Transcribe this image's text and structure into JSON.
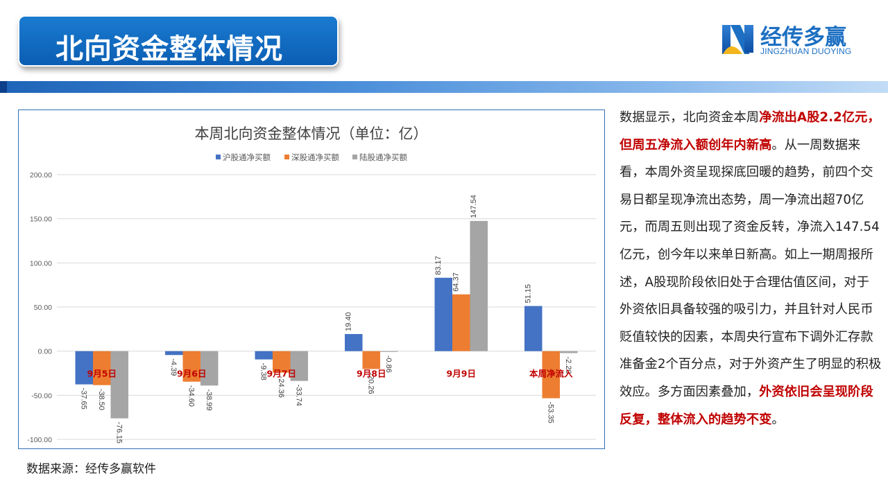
{
  "header": {
    "title": "北向资金整体情况",
    "logo_cn": "经传多赢",
    "logo_en": "JINGZHUAN DUOYING"
  },
  "colors": {
    "brand_blue": "#1c6fc2",
    "series_sh": "#4472c4",
    "series_sz": "#ed7d31",
    "series_total": "#a5a5a5",
    "category_label": "#c00000",
    "highlight_text": "#c00000"
  },
  "source": "数据来源：经传多赢软件",
  "commentary": [
    {
      "text": "数据显示，北向资金本周",
      "hl": false
    },
    {
      "text": "净流出A股2.2亿元，但周五净流入额创年内新高",
      "hl": true
    },
    {
      "text": "。从一周数据来看，本周外资呈现探底回暖的趋势，前四个交易日都呈现净流出态势，周一净流出超70亿元，而周五则出现了资金反转，净流入147.54亿元，创今年以来单日新高。如上一期周报所述，A股现阶段依旧处于合理估值区间，对于外资依旧具备较强的吸引力，并且针对人民币贬值较快的因素，本周央行宣布下调外汇存款准备金2个百分点，对于外资产生了明显的积极效应。多方面因素叠加，",
      "hl": false
    },
    {
      "text": "外资依旧会呈现阶段反复，整体流入的趋势不变",
      "hl": true
    },
    {
      "text": "。",
      "hl": false
    }
  ],
  "chart_data": {
    "type": "bar",
    "title": "本周北向资金整体情况（单位：亿）",
    "categories": [
      "9月5日",
      "9月6日",
      "9月7日",
      "9月8日",
      "9月9日",
      "本周净流入"
    ],
    "series": [
      {
        "name": "沪股通净买额",
        "values": [
          -37.65,
          -4.39,
          -9.38,
          19.4,
          83.17,
          51.15
        ],
        "labels": [
          "-37.65",
          "-4.39",
          "-9.38",
          "19.40",
          "83.17",
          "51.15"
        ]
      },
      {
        "name": "深股通净买额",
        "values": [
          -38.5,
          -34.6,
          -24.36,
          -20.26,
          64.37,
          -53.35
        ],
        "labels": [
          "-38.50",
          "-34.60",
          "-24.36",
          "-20.26",
          "64.37",
          "-53.35"
        ]
      },
      {
        "name": "陆股通净买额",
        "values": [
          -76.15,
          -38.99,
          -33.74,
          -0.86,
          147.54,
          -2.2
        ],
        "labels": [
          "-76.15",
          "-38.99",
          "-33.74",
          "-0.86",
          "147.54",
          "-2.20"
        ]
      }
    ],
    "y_ticks": [
      "200.00",
      "150.00",
      "100.00",
      "50.00",
      "0.00",
      "-50.00",
      "-100.00"
    ],
    "ylim": [
      -100,
      200
    ],
    "legend": "top-center",
    "grid": true
  }
}
